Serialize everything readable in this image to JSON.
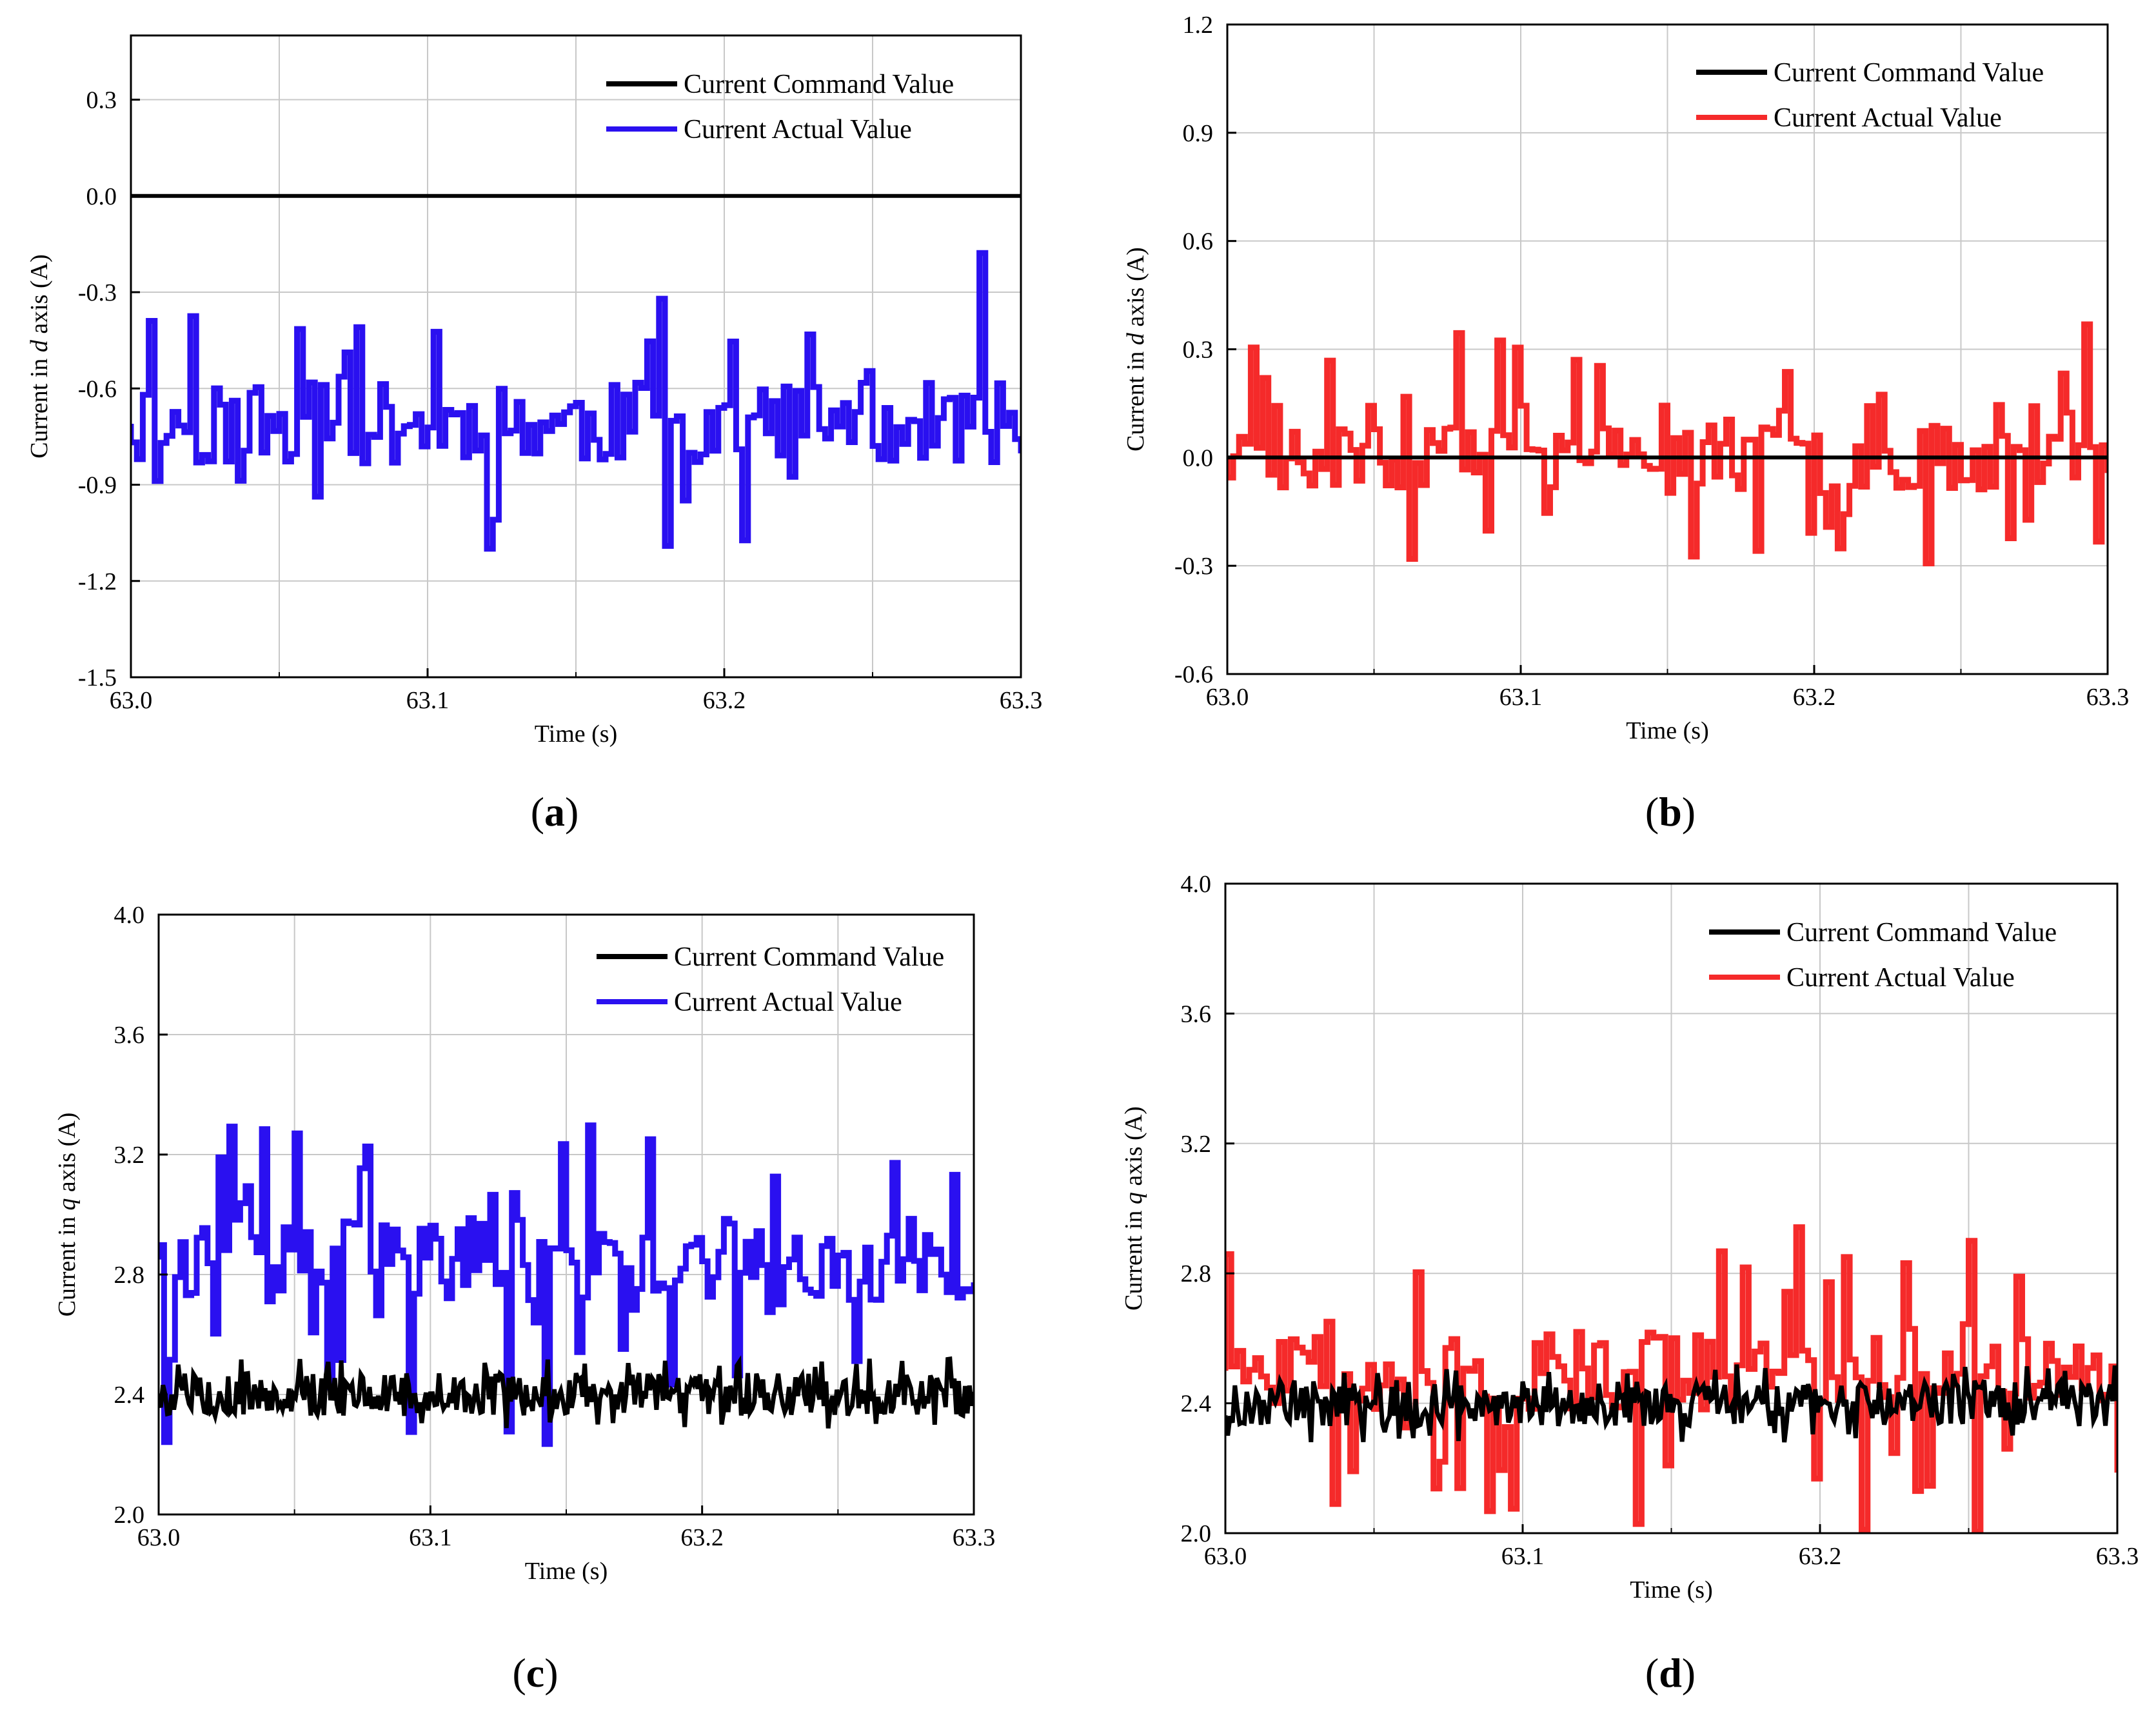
{
  "chart_data": [
    {
      "id": "a",
      "panel_label": "(a)",
      "type": "line",
      "xlabel": "Time (s)",
      "ylabel": {
        "prefix": "Current in ",
        "axis": "d",
        "suffix": " axis (A)"
      },
      "xlim": [
        63.0,
        63.3
      ],
      "ylim": [
        -1.5,
        0.5
      ],
      "xticks": [
        63.0,
        63.1,
        63.2,
        63.3
      ],
      "xtick_labels": [
        "63.0",
        "63.1",
        "63.2",
        "63.3"
      ],
      "yticks": [
        -1.5,
        -1.2,
        -0.9,
        -0.6,
        -0.3,
        0.0,
        0.3
      ],
      "ytick_labels": [
        "-1.5",
        "-1.2",
        "-0.9",
        "-0.6",
        "-0.3",
        "0.0",
        "0.3"
      ],
      "grid": true,
      "legend_position": "top-right",
      "series": [
        {
          "name": "Current Command Value",
          "color": "#000000",
          "kind": "constant",
          "value": 0.0
        },
        {
          "name": "Current Actual Value",
          "color": "#2a10f0",
          "kind": "random-step",
          "base": -0.71,
          "spread": 0.13,
          "spike_prob": 0.22,
          "spike_min": -1.1,
          "spike_max": -0.11,
          "step": 0.002,
          "seed": 11
        }
      ]
    },
    {
      "id": "b",
      "panel_label": "(b)",
      "type": "line",
      "xlabel": "Time (s)",
      "ylabel": {
        "prefix": "Current in ",
        "axis": "d",
        "suffix": " axis (A)"
      },
      "xlim": [
        63.0,
        63.3
      ],
      "ylim": [
        -0.6,
        1.2
      ],
      "xticks": [
        63.0,
        63.1,
        63.2,
        63.3
      ],
      "xtick_labels": [
        "63.0",
        "63.1",
        "63.2",
        "63.3"
      ],
      "yticks": [
        -0.6,
        -0.3,
        0.0,
        0.3,
        0.6,
        0.9,
        1.2
      ],
      "ytick_labels": [
        "-0.6",
        "-0.3",
        "0.0",
        "0.3",
        "0.6",
        "0.9",
        "1.2"
      ],
      "grid": true,
      "legend_position": "top-right",
      "series": [
        {
          "name": "Current Command Value",
          "color": "#000000",
          "kind": "constant",
          "value": 0.0
        },
        {
          "name": "Current Actual Value",
          "color": "#f52a2a",
          "kind": "random-step",
          "base": 0.0,
          "spread": 0.09,
          "spike_prob": 0.25,
          "spike_min": -0.3,
          "spike_max": 0.37,
          "step": 0.002,
          "seed": 23
        }
      ]
    },
    {
      "id": "c",
      "panel_label": "(c)",
      "type": "line",
      "xlabel": "Time (s)",
      "ylabel": {
        "prefix": "Current in ",
        "axis": "q",
        "suffix": " axis (A)"
      },
      "xlim": [
        63.0,
        63.3
      ],
      "ylim": [
        2.0,
        4.0
      ],
      "xticks": [
        63.0,
        63.1,
        63.2,
        63.3
      ],
      "xtick_labels": [
        "63.0",
        "63.1",
        "63.2",
        "63.3"
      ],
      "yticks": [
        2.0,
        2.4,
        2.8,
        3.2,
        3.6,
        4.0
      ],
      "ytick_labels": [
        "2.0",
        "2.4",
        "2.8",
        "3.2",
        "3.6",
        "4.0"
      ],
      "grid": true,
      "legend_position": "top-right",
      "series": [
        {
          "name": "Current Command Value",
          "color": "#000000",
          "kind": "noise",
          "base": 2.4,
          "spread": 0.08,
          "step": 0.0008,
          "seed": 5
        },
        {
          "name": "Current Actual Value",
          "color": "#2a10f0",
          "kind": "random-step",
          "base": 2.85,
          "spread": 0.14,
          "spike_prob": 0.3,
          "spike_min": 2.2,
          "spike_max": 3.3,
          "step": 0.002,
          "seed": 37
        }
      ]
    },
    {
      "id": "d",
      "panel_label": "(d)",
      "type": "line",
      "xlabel": "Time (s)",
      "ylabel": {
        "prefix": "Current in ",
        "axis": "q",
        "suffix": " axis (A)"
      },
      "xlim": [
        63.0,
        63.3
      ],
      "ylim": [
        2.0,
        4.0
      ],
      "xticks": [
        63.0,
        63.1,
        63.2,
        63.3
      ],
      "xtick_labels": [
        "63.0",
        "63.1",
        "63.2",
        "63.3"
      ],
      "yticks": [
        2.0,
        2.4,
        2.8,
        3.2,
        3.6,
        4.0
      ],
      "ytick_labels": [
        "2.0",
        "2.4",
        "2.8",
        "3.2",
        "3.6",
        "4.0"
      ],
      "grid": true,
      "legend_position": "top-right",
      "series": [
        {
          "name": "Current Command Value",
          "color": "#000000",
          "kind": "noise",
          "base": 2.4,
          "spread": 0.08,
          "step": 0.0008,
          "seed": 9
        },
        {
          "name": "Current Actual Value",
          "color": "#f52a2a",
          "kind": "random-step",
          "base": 2.5,
          "spread": 0.12,
          "spike_prob": 0.3,
          "spike_min": 2.0,
          "spike_max": 2.95,
          "step": 0.002,
          "seed": 51
        }
      ]
    }
  ]
}
